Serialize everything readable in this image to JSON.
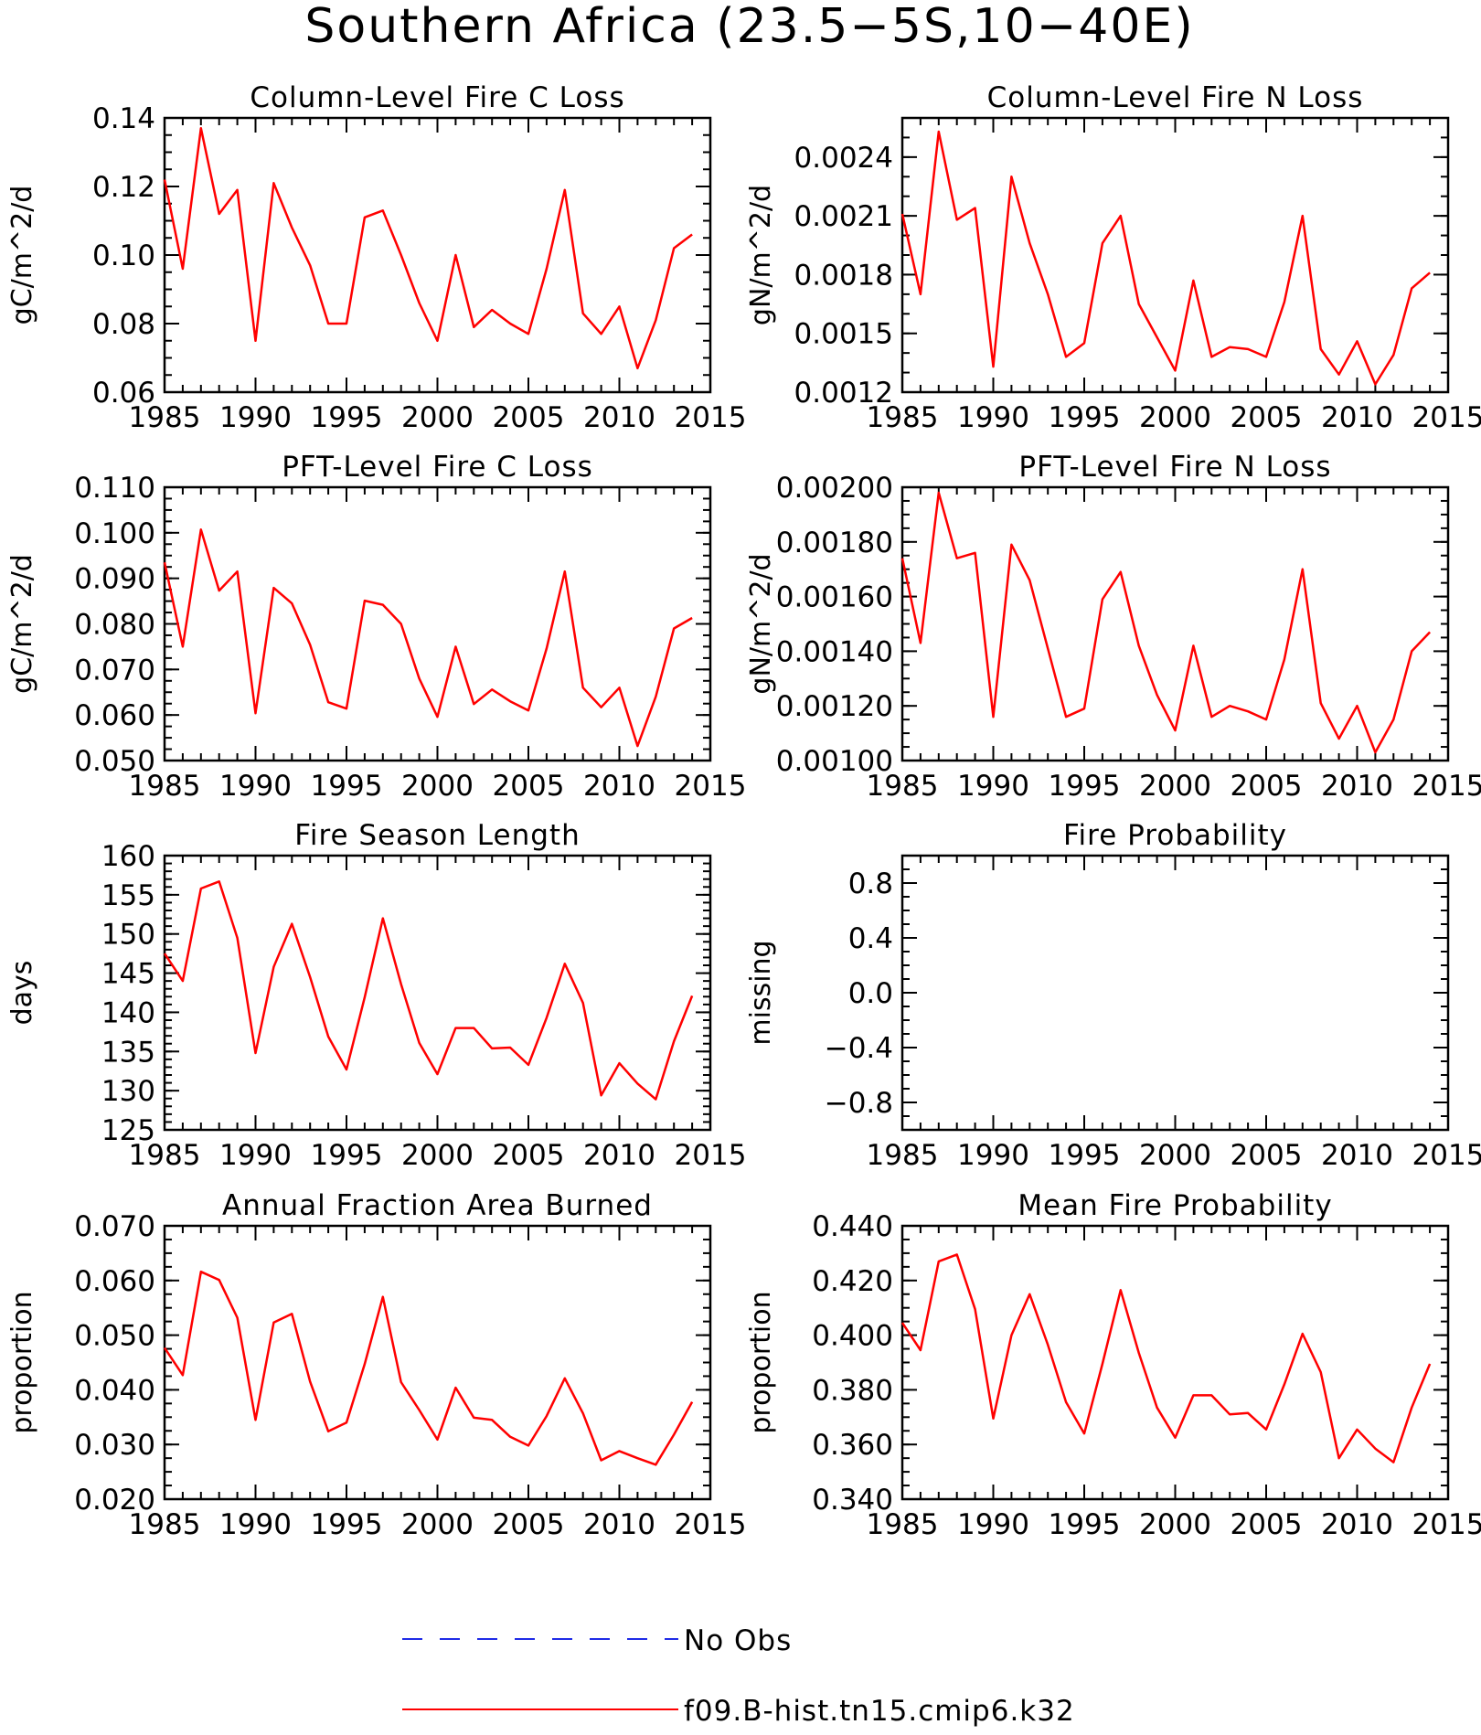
{
  "title": "Southern Africa (23.5-5S,10-40E)",
  "chart_data": [
    {
      "type": "line",
      "title": "Column-Level Fire C Loss",
      "ylabel": "gC/m^2/d",
      "xlim": [
        1985,
        2015
      ],
      "ylim": [
        0.06,
        0.14
      ],
      "xticks": [
        1985,
        1990,
        1995,
        2000,
        2005,
        2010,
        2015
      ],
      "yticks": [
        "0.06",
        "0.08",
        "0.10",
        "0.12",
        "0.14"
      ],
      "yminor": 0.005,
      "x": [
        1985,
        1986,
        1987,
        1988,
        1989,
        1990,
        1991,
        1992,
        1993,
        1994,
        1995,
        1996,
        1997,
        1998,
        1999,
        2000,
        2001,
        2002,
        2003,
        2004,
        2005,
        2006,
        2007,
        2008,
        2009,
        2010,
        2011,
        2012,
        2013,
        2014
      ],
      "series": [
        {
          "values": [
            0.122,
            0.096,
            0.137,
            0.112,
            0.119,
            0.075,
            0.121,
            0.108,
            0.097,
            0.08,
            0.08,
            0.111,
            0.113,
            0.1,
            0.086,
            0.075,
            0.1,
            0.079,
            0.084,
            0.08,
            0.077,
            0.096,
            0.119,
            0.083,
            0.077,
            0.085,
            0.067,
            0.081,
            0.102,
            0.106
          ]
        }
      ]
    },
    {
      "type": "line",
      "title": "Column-Level Fire N Loss",
      "ylabel": "gN/m^2/d",
      "xlim": [
        1985,
        2015
      ],
      "ylim": [
        0.0012,
        0.0026
      ],
      "xticks": [
        1985,
        1990,
        1995,
        2000,
        2005,
        2010,
        2015
      ],
      "yticks": [
        "0.0012",
        "0.0015",
        "0.0018",
        "0.0021",
        "0.0024"
      ],
      "yminor": 0.0001,
      "x": [
        1985,
        1986,
        1987,
        1988,
        1989,
        1990,
        1991,
        1992,
        1993,
        1994,
        1995,
        1996,
        1997,
        1998,
        1999,
        2000,
        2001,
        2002,
        2003,
        2004,
        2005,
        2006,
        2007,
        2008,
        2009,
        2010,
        2011,
        2012,
        2013,
        2014
      ],
      "series": [
        {
          "values": [
            0.00211,
            0.0017,
            0.00253,
            0.00208,
            0.00214,
            0.00133,
            0.0023,
            0.00196,
            0.0017,
            0.00138,
            0.00145,
            0.00196,
            0.0021,
            0.00165,
            0.00148,
            0.00131,
            0.00177,
            0.00138,
            0.00143,
            0.00142,
            0.00138,
            0.00166,
            0.0021,
            0.00142,
            0.00129,
            0.00146,
            0.00124,
            0.00139,
            0.00173,
            0.00181
          ]
        }
      ]
    },
    {
      "type": "line",
      "title": "PFT-Level Fire C Loss",
      "ylabel": "gC/m^2/d",
      "xlim": [
        1985,
        2015
      ],
      "ylim": [
        0.05,
        0.11
      ],
      "xticks": [
        1985,
        1990,
        1995,
        2000,
        2005,
        2010,
        2015
      ],
      "yticks": [
        "0.050",
        "0.060",
        "0.070",
        "0.080",
        "0.090",
        "0.100",
        "0.110"
      ],
      "yminor": 0.0025,
      "x": [
        1985,
        1986,
        1987,
        1988,
        1989,
        1990,
        1991,
        1992,
        1993,
        1994,
        1995,
        1996,
        1997,
        1998,
        1999,
        2000,
        2001,
        2002,
        2003,
        2004,
        2005,
        2006,
        2007,
        2008,
        2009,
        2010,
        2011,
        2012,
        2013,
        2014
      ],
      "series": [
        {
          "values": [
            0.0935,
            0.075,
            0.1007,
            0.0873,
            0.0915,
            0.0604,
            0.0879,
            0.0845,
            0.0754,
            0.0628,
            0.0614,
            0.0851,
            0.0842,
            0.08,
            0.068,
            0.0596,
            0.075,
            0.0624,
            0.0656,
            0.063,
            0.061,
            0.0746,
            0.0915,
            0.066,
            0.0617,
            0.066,
            0.0532,
            0.064,
            0.079,
            0.0813
          ]
        }
      ]
    },
    {
      "type": "line",
      "title": "PFT-Level Fire N Loss",
      "ylabel": "gN/m^2/d",
      "xlim": [
        1985,
        2015
      ],
      "ylim": [
        0.001,
        0.002
      ],
      "xticks": [
        1985,
        1990,
        1995,
        2000,
        2005,
        2010,
        2015
      ],
      "yticks": [
        "0.00100",
        "0.00120",
        "0.00140",
        "0.00160",
        "0.00180",
        "0.00200"
      ],
      "yminor": 5e-05,
      "x": [
        1985,
        1986,
        1987,
        1988,
        1989,
        1990,
        1991,
        1992,
        1993,
        1994,
        1995,
        1996,
        1997,
        1998,
        1999,
        2000,
        2001,
        2002,
        2003,
        2004,
        2005,
        2006,
        2007,
        2008,
        2009,
        2010,
        2011,
        2012,
        2013,
        2014
      ],
      "series": [
        {
          "values": [
            0.00174,
            0.00143,
            0.00198,
            0.00174,
            0.00176,
            0.00116,
            0.00179,
            0.00166,
            0.00141,
            0.00116,
            0.00119,
            0.00159,
            0.00169,
            0.00142,
            0.00124,
            0.00111,
            0.00142,
            0.00116,
            0.0012,
            0.00118,
            0.00115,
            0.00137,
            0.0017,
            0.00121,
            0.00108,
            0.0012,
            0.00103,
            0.00115,
            0.0014,
            0.00147
          ]
        }
      ]
    },
    {
      "type": "line",
      "title": "Fire Season Length",
      "ylabel": "days",
      "xlim": [
        1985,
        2015
      ],
      "ylim": [
        125,
        160
      ],
      "xticks": [
        1985,
        1990,
        1995,
        2000,
        2005,
        2010,
        2015
      ],
      "yticks": [
        "125",
        "130",
        "135",
        "140",
        "145",
        "150",
        "155",
        "160"
      ],
      "yminor": 1,
      "x": [
        1985,
        1986,
        1987,
        1988,
        1989,
        1990,
        1991,
        1992,
        1993,
        1994,
        1995,
        1996,
        1997,
        1998,
        1999,
        2000,
        2001,
        2002,
        2003,
        2004,
        2005,
        2006,
        2007,
        2008,
        2009,
        2010,
        2011,
        2012,
        2013,
        2014
      ],
      "series": [
        {
          "values": [
            147.5,
            144.0,
            155.8,
            156.7,
            149.5,
            134.8,
            145.8,
            151.3,
            144.5,
            136.9,
            132.7,
            141.9,
            152.0,
            143.6,
            136.1,
            132.1,
            138.0,
            138.0,
            135.4,
            135.5,
            133.3,
            139.3,
            146.2,
            141.2,
            129.4,
            133.5,
            130.9,
            128.9,
            136.3,
            142.1
          ]
        }
      ]
    },
    {
      "type": "line",
      "title": "Fire Probability",
      "ylabel": "missing",
      "xlim": [
        1985,
        2015
      ],
      "ylim": [
        -1,
        1
      ],
      "xticks": [
        1985,
        1990,
        1995,
        2000,
        2005,
        2010,
        2015
      ],
      "yticks": [
        "-0.8",
        "-0.4",
        "0.0",
        "0.4",
        "0.8"
      ],
      "yminor": 0.1,
      "x": [],
      "series": []
    },
    {
      "type": "line",
      "title": "Annual Fraction Area Burned",
      "ylabel": "proportion",
      "xlim": [
        1985,
        2015
      ],
      "ylim": [
        0.02,
        0.07
      ],
      "xticks": [
        1985,
        1990,
        1995,
        2000,
        2005,
        2010,
        2015
      ],
      "yticks": [
        "0.020",
        "0.030",
        "0.040",
        "0.050",
        "0.060",
        "0.070"
      ],
      "yminor": 0.0025,
      "x": [
        1985,
        1986,
        1987,
        1988,
        1989,
        1990,
        1991,
        1992,
        1993,
        1994,
        1995,
        1996,
        1997,
        1998,
        1999,
        2000,
        2001,
        2002,
        2003,
        2004,
        2005,
        2006,
        2007,
        2008,
        2009,
        2010,
        2011,
        2012,
        2013,
        2014
      ],
      "series": [
        {
          "values": [
            0.0477,
            0.0427,
            0.0616,
            0.0601,
            0.0532,
            0.0345,
            0.0523,
            0.0539,
            0.0415,
            0.0324,
            0.034,
            0.0447,
            0.057,
            0.0414,
            0.0363,
            0.0309,
            0.0404,
            0.0349,
            0.0345,
            0.0314,
            0.0298,
            0.0352,
            0.0421,
            0.0357,
            0.0271,
            0.0288,
            0.0275,
            0.0263,
            0.0318,
            0.0378
          ]
        }
      ]
    },
    {
      "type": "line",
      "title": "Mean Fire Probability",
      "ylabel": "proportion",
      "xlim": [
        1985,
        2015
      ],
      "ylim": [
        0.34,
        0.44
      ],
      "xticks": [
        1985,
        1990,
        1995,
        2000,
        2005,
        2010,
        2015
      ],
      "yticks": [
        "0.340",
        "0.360",
        "0.380",
        "0.400",
        "0.420",
        "0.440"
      ],
      "yminor": 0.005,
      "x": [
        1985,
        1986,
        1987,
        1988,
        1989,
        1990,
        1991,
        1992,
        1993,
        1994,
        1995,
        1996,
        1997,
        1998,
        1999,
        2000,
        2001,
        2002,
        2003,
        2004,
        2005,
        2006,
        2007,
        2008,
        2009,
        2010,
        2011,
        2012,
        2013,
        2014
      ],
      "series": [
        {
          "values": [
            0.4045,
            0.3945,
            0.427,
            0.4295,
            0.4095,
            0.3695,
            0.4,
            0.415,
            0.3965,
            0.3755,
            0.364,
            0.3895,
            0.4165,
            0.3935,
            0.3735,
            0.3625,
            0.378,
            0.378,
            0.371,
            0.3715,
            0.3655,
            0.382,
            0.4005,
            0.3865,
            0.355,
            0.3655,
            0.3585,
            0.3535,
            0.3735,
            0.3895
          ]
        }
      ]
    }
  ],
  "legend": {
    "items": [
      {
        "label": "No Obs",
        "color": "#1f2be6",
        "style": "dashed"
      },
      {
        "label": "f09.B-hist.tn15.cmip6.k32",
        "color": "#ff0000",
        "style": "solid"
      }
    ]
  },
  "colors": {
    "series": "#ff0000",
    "obs": "#1f2be6",
    "axis": "#000000"
  }
}
